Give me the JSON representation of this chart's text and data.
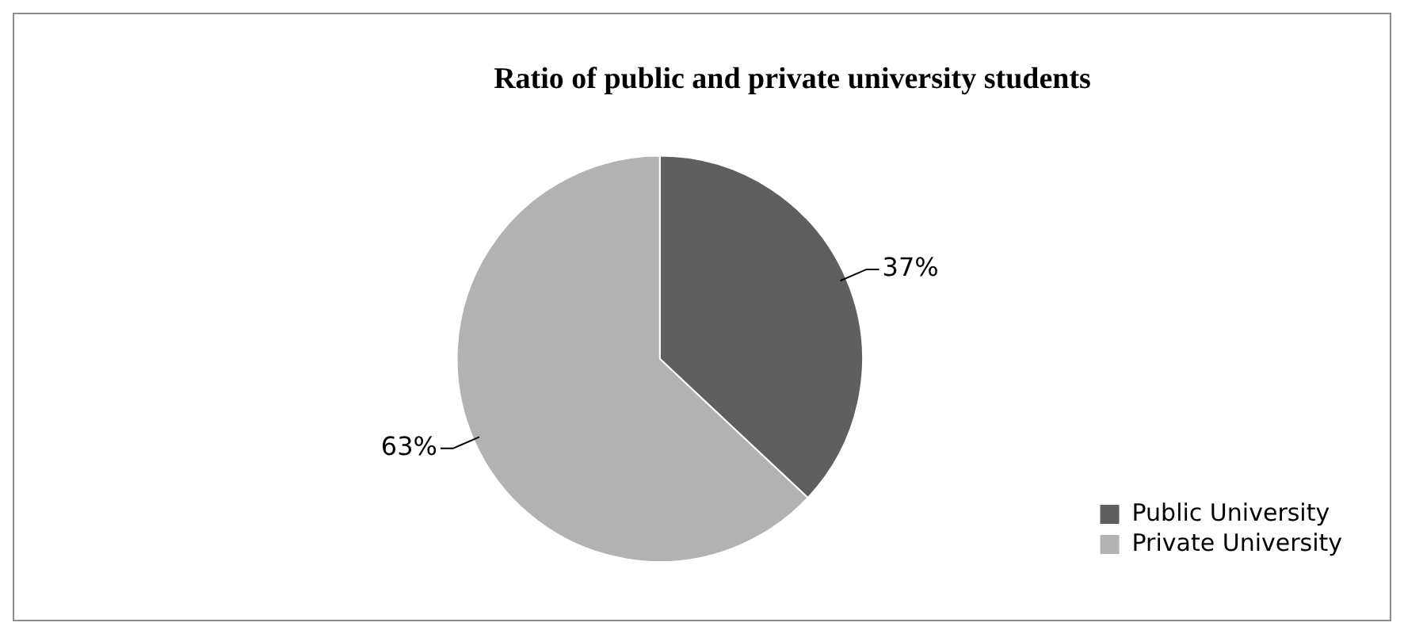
{
  "chart_data": {
    "type": "pie",
    "title": "Ratio of public and private university students",
    "categories": [
      "Public University",
      "Private University"
    ],
    "values": [
      37,
      63
    ],
    "value_labels": [
      "37%",
      "63%"
    ],
    "colors": [
      "#5f5f5f",
      "#b2b2b2"
    ],
    "legend": "bottom right"
  }
}
